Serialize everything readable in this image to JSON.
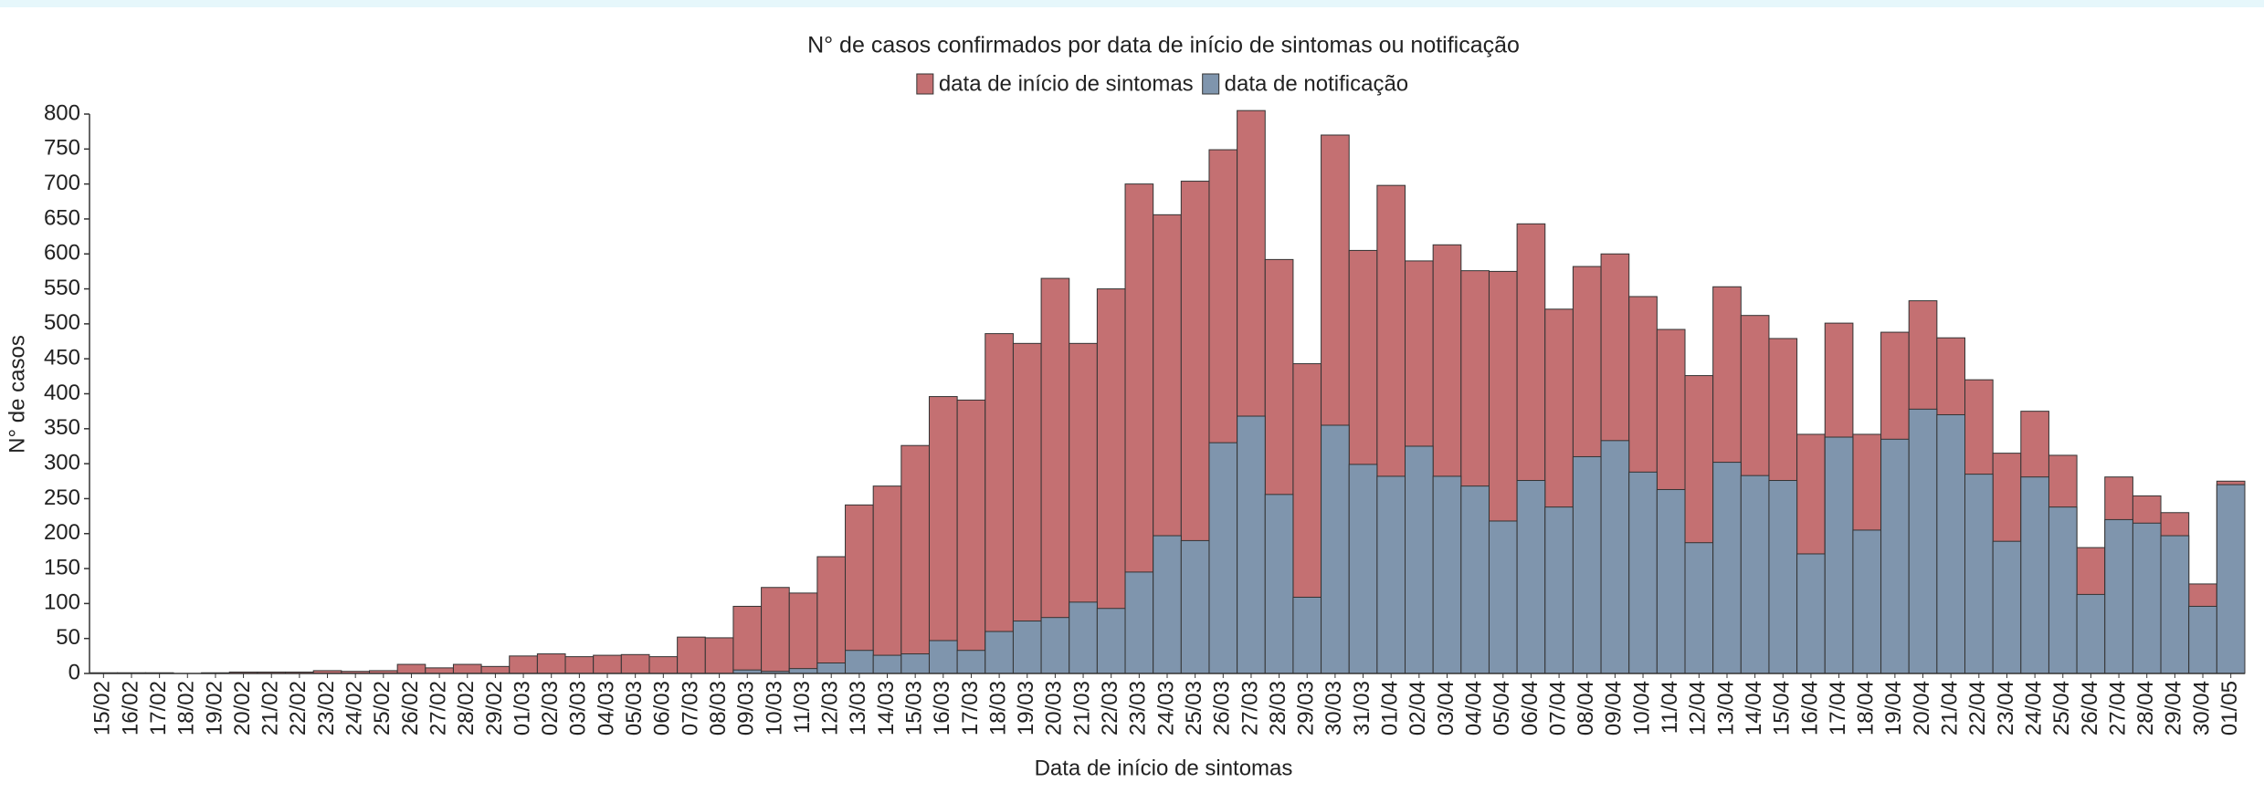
{
  "chart_data": {
    "type": "bar",
    "overlap": true,
    "title": "N° de casos confirmados por data de início de sintomas ou notificação",
    "xlabel": "Data de início de sintomas",
    "ylabel": "N° de casos",
    "categories": [
      "15/02",
      "16/02",
      "17/02",
      "18/02",
      "19/02",
      "20/02",
      "21/02",
      "22/02",
      "23/02",
      "24/02",
      "25/02",
      "26/02",
      "27/02",
      "28/02",
      "29/02",
      "01/03",
      "02/03",
      "03/03",
      "04/03",
      "05/03",
      "06/03",
      "07/03",
      "08/03",
      "09/03",
      "10/03",
      "11/03",
      "12/03",
      "13/03",
      "14/03",
      "15/03",
      "16/03",
      "17/03",
      "18/03",
      "19/03",
      "20/03",
      "21/03",
      "22/03",
      "23/03",
      "24/03",
      "25/03",
      "26/03",
      "27/03",
      "28/03",
      "29/03",
      "30/03",
      "31/03",
      "01/04",
      "02/04",
      "03/04",
      "04/04",
      "05/04",
      "06/04",
      "07/04",
      "08/04",
      "09/04",
      "10/04",
      "11/04",
      "12/04",
      "13/04",
      "14/04",
      "15/04",
      "16/04",
      "17/04",
      "18/04",
      "19/04",
      "20/04",
      "21/04",
      "22/04",
      "23/04",
      "24/04",
      "25/04",
      "26/04",
      "27/04",
      "28/04",
      "29/04",
      "30/04",
      "01/05"
    ],
    "series": [
      {
        "name": "data de início de sintomas",
        "color": "#c47072",
        "values": [
          1,
          1,
          1,
          0,
          1,
          2,
          2,
          2,
          4,
          3,
          4,
          13,
          8,
          13,
          10,
          25,
          28,
          24,
          26,
          27,
          24,
          52,
          51,
          96,
          123,
          115,
          167,
          241,
          268,
          326,
          396,
          391,
          486,
          472,
          565,
          472,
          550,
          700,
          656,
          704,
          749,
          805,
          592,
          443,
          770,
          605,
          698,
          590,
          613,
          576,
          575,
          643,
          521,
          582,
          600,
          539,
          492,
          426,
          553,
          512,
          479,
          342,
          501,
          342,
          488,
          533,
          480,
          420,
          315,
          375,
          312,
          180,
          281,
          254,
          230,
          128,
          275
        ]
      },
      {
        "name": "data de notificação",
        "color": "#7f95ad",
        "values": [
          0,
          0,
          0,
          0,
          0,
          0,
          0,
          0,
          0,
          0,
          0,
          0,
          0,
          0,
          0,
          0,
          0,
          0,
          0,
          0,
          0,
          0,
          0,
          5,
          3,
          7,
          15,
          33,
          26,
          28,
          47,
          33,
          60,
          75,
          80,
          102,
          93,
          145,
          197,
          190,
          330,
          368,
          256,
          109,
          355,
          299,
          282,
          325,
          282,
          268,
          218,
          276,
          238,
          310,
          333,
          288,
          263,
          187,
          302,
          283,
          276,
          171,
          338,
          205,
          335,
          378,
          370,
          285,
          189,
          281,
          238,
          113,
          220,
          215,
          197,
          96,
          270
        ]
      }
    ],
    "ylim": [
      0,
      800
    ],
    "yticks": [
      0,
      50,
      100,
      150,
      200,
      250,
      300,
      350,
      400,
      450,
      500,
      550,
      600,
      650,
      700,
      750,
      800
    ]
  }
}
